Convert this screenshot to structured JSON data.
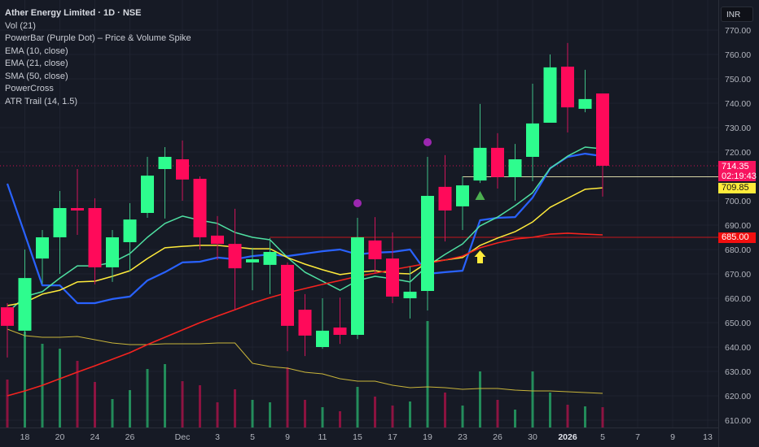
{
  "legend": {
    "title": "Ather Energy Limited · 1D · NSE",
    "items": [
      "Vol (21)",
      "PowerBar (Purple Dot) – Price & Volume Spike",
      "EMA (10, close)",
      "EMA (21, close)",
      "SMA (50, close)",
      "PowerCross",
      "ATR Trail (14, 1.5)"
    ]
  },
  "currency_button": "INR",
  "price_labels": {
    "last_price": "714.35",
    "countdown": "02:19:43",
    "atr_trail": "709.85",
    "powercross_level": "685.00"
  },
  "colors": {
    "background": "#161a25",
    "grid": "#1f2330",
    "up": "#2efc8e",
    "down": "#ff0a5a",
    "ema10": "#2962ff",
    "ema21": "#4fe0a2",
    "sma50_yellow": "#ffeb3b",
    "red_ma": "#f5231f",
    "vol_ma": "#c9b53a",
    "atr_trail": "#d8d6a6",
    "powerbar": "#9c27b0"
  },
  "chart_data": {
    "type": "candlestick",
    "title": "Ather Energy Limited · 1D · NSE",
    "ylim": [
      605,
      775
    ],
    "y_ticks": [
      "770.00",
      "760.00",
      "750.00",
      "740.00",
      "730.00",
      "720.00",
      "700.00",
      "690.00",
      "680.00",
      "670.00",
      "660.00",
      "650.00",
      "640.00",
      "630.00",
      "620.00",
      "610.00"
    ],
    "y_tick_values": [
      770,
      760,
      750,
      740,
      730,
      720,
      700,
      690,
      680,
      670,
      660,
      650,
      640,
      630,
      620,
      610
    ],
    "x_labels": [
      {
        "label": "18",
        "index": 1
      },
      {
        "label": "20",
        "index": 3
      },
      {
        "label": "24",
        "index": 5
      },
      {
        "label": "26",
        "index": 7
      },
      {
        "label": "Dec",
        "index": 10
      },
      {
        "label": "3",
        "index": 12
      },
      {
        "label": "5",
        "index": 14
      },
      {
        "label": "9",
        "index": 16
      },
      {
        "label": "11",
        "index": 18
      },
      {
        "label": "15",
        "index": 20
      },
      {
        "label": "17",
        "index": 22
      },
      {
        "label": "19",
        "index": 24
      },
      {
        "label": "23",
        "index": 26
      },
      {
        "label": "26",
        "index": 28
      },
      {
        "label": "30",
        "index": 30
      },
      {
        "label": "2026",
        "index": 32,
        "bold": true
      },
      {
        "label": "5",
        "index": 34
      },
      {
        "label": "7",
        "index": 36
      },
      {
        "label": "9",
        "index": 38
      },
      {
        "label": "13",
        "index": 40
      }
    ],
    "ohlc": [
      [
        656.3,
        658,
        635.7,
        648.7
      ],
      [
        646.7,
        680,
        644,
        668.3
      ],
      [
        676.3,
        688,
        666,
        685
      ],
      [
        685,
        704,
        670,
        697
      ],
      [
        697,
        713,
        686,
        696
      ],
      [
        697,
        701,
        665.7,
        672.7
      ],
      [
        672.7,
        688,
        666.7,
        685
      ],
      [
        683,
        699,
        671,
        692.3
      ],
      [
        695,
        718,
        693,
        710.3
      ],
      [
        713,
        722,
        692.7,
        718
      ],
      [
        717,
        724.7,
        700,
        708.7
      ],
      [
        709,
        710,
        680,
        685
      ],
      [
        685.7,
        693.7,
        675.7,
        682.3
      ],
      [
        682.3,
        696.7,
        655,
        672.3
      ],
      [
        674.7,
        680.7,
        663.3,
        676
      ],
      [
        673.7,
        684.7,
        661.7,
        679
      ],
      [
        673.7,
        674.7,
        638.3,
        648.7
      ],
      [
        655.3,
        661.7,
        636.3,
        644.7
      ],
      [
        640,
        660,
        639.3,
        646.7
      ],
      [
        648,
        660.3,
        641.3,
        645
      ],
      [
        645,
        693,
        643.3,
        685
      ],
      [
        683.7,
        693.3,
        670,
        676
      ],
      [
        676.3,
        687,
        658,
        660.7
      ],
      [
        660,
        673,
        651.7,
        662.7
      ],
      [
        663,
        718,
        655,
        702
      ],
      [
        705.7,
        718.7,
        683.3,
        696
      ],
      [
        697.7,
        710,
        688,
        706.3
      ],
      [
        708.3,
        739.7,
        707.3,
        721.7
      ],
      [
        721.7,
        727.7,
        705,
        709.7
      ],
      [
        709.7,
        723.3,
        700,
        717
      ],
      [
        718,
        748,
        708,
        731.7
      ],
      [
        732,
        760,
        732,
        754.7
      ],
      [
        755,
        764.7,
        728,
        738.3
      ],
      [
        737.7,
        753.7,
        736.3,
        741.7
      ],
      [
        744,
        744,
        701.7,
        714.35
      ]
    ],
    "volume_relative": [
      59,
      118,
      103,
      97,
      82,
      56,
      35,
      46,
      72,
      78,
      57,
      52,
      31,
      47,
      34,
      31,
      74,
      34,
      25,
      20,
      50,
      38,
      27,
      32,
      131,
      43,
      27,
      69,
      34,
      22,
      69,
      43,
      28,
      26,
      25
    ],
    "volume_ma_relative": [
      121,
      113,
      111,
      111,
      112,
      108,
      104,
      102,
      102,
      103,
      103,
      103,
      104,
      104,
      79,
      75,
      73,
      68,
      66,
      60,
      57,
      57,
      52,
      49,
      50,
      49,
      47,
      48,
      48,
      46,
      45,
      45,
      44,
      43,
      42
    ],
    "series": [
      {
        "name": "EMA (10, close)",
        "color_key": "ema10",
        "values": [
          707,
          686.3,
          665.3,
          665.3,
          658,
          658,
          659.7,
          660.7,
          667.3,
          670.7,
          674.7,
          675,
          676.7,
          676,
          677.3,
          678,
          677.3,
          678.3,
          679.3,
          680,
          678,
          678.7,
          679,
          680,
          670,
          670.7,
          671.3,
          692,
          693,
          693.3,
          701.3,
          713.3,
          718,
          719.3,
          718.3
        ]
      },
      {
        "name": "EMA (21, close)",
        "color_key": "ema21",
        "values": [
          654,
          660.7,
          662.7,
          668.3,
          673.3,
          673.3,
          674.7,
          678.3,
          685,
          690.7,
          693.7,
          692,
          690.7,
          687,
          685,
          684,
          676.7,
          670.7,
          667,
          663.3,
          667.3,
          669,
          668,
          666.7,
          673.3,
          678,
          682.3,
          689.7,
          693.3,
          698,
          703.3,
          713.3,
          718.3,
          722,
          721.3
        ]
      },
      {
        "name": "SMA (50, close)",
        "color_key": "sma50_yellow",
        "values": [
          657,
          658.3,
          661.7,
          663.3,
          666.7,
          667,
          669,
          671.3,
          676.3,
          680.7,
          681.3,
          681.7,
          681.7,
          681,
          680.3,
          680.3,
          676.7,
          674,
          671.7,
          669.7,
          670.7,
          671.3,
          670.3,
          670,
          674.7,
          675.7,
          676.7,
          681.7,
          684.7,
          687.3,
          691.3,
          697.3,
          701,
          704.7,
          705.3
        ]
      },
      {
        "name": "Long MA",
        "color_key": "red_ma",
        "values": [
          620,
          622,
          624.3,
          627,
          629.7,
          632.3,
          635,
          637.7,
          641,
          644,
          647,
          650,
          652.7,
          655.3,
          658,
          660.3,
          662.3,
          664,
          665.7,
          667.3,
          669,
          670.3,
          671.7,
          673,
          674.3,
          675.7,
          677.3,
          680.7,
          682.7,
          684.3,
          685,
          686.3,
          686.7,
          686.3,
          686
        ]
      }
    ],
    "atr_trail": {
      "start_index": 26,
      "start_value": 706.3,
      "value": 709.85
    },
    "powercross_level": {
      "start_index": 15,
      "value": 685.0
    },
    "last_price": 714.35,
    "powerbar_dots": [
      {
        "index": 20,
        "value": 699
      },
      {
        "index": 24,
        "value": 724
      }
    ],
    "powercross_triangles": [
      {
        "index": 27,
        "value": 702
      }
    ],
    "signal_arrows": [
      {
        "index": 27,
        "value": 677
      }
    ]
  }
}
